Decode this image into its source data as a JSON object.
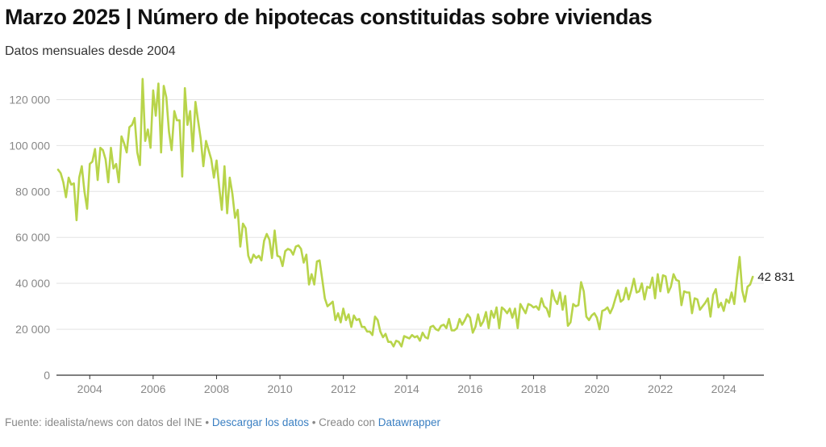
{
  "title": "Marzo 2025 | Número de hipotecas constituidas sobre viviendas",
  "subtitle": "Datos mensuales desde 2004",
  "footer": {
    "source": "Fuente: idealista/news con datos del INE",
    "sep1": " • ",
    "download_label": "Descargar los datos",
    "sep2": " • Creado con ",
    "tool_label": "Datawrapper"
  },
  "chart_data": {
    "type": "line",
    "title": "Marzo 2025 | Número de hipotecas constituidas sobre viviendas",
    "subtitle": "Datos mensuales desde 2004",
    "xlabel": "",
    "ylabel": "",
    "x_start": "2003-01",
    "frequency": "monthly",
    "xlim": [
      "2003-01",
      "2025-03"
    ],
    "ylim": [
      0,
      130000
    ],
    "y_ticks": [
      0,
      20000,
      40000,
      60000,
      80000,
      100000,
      120000
    ],
    "y_tick_labels": [
      "0",
      "20 000",
      "40 000",
      "60 000",
      "80 000",
      "100 000",
      "120 000"
    ],
    "x_ticks": [
      "2004",
      "2006",
      "2008",
      "2010",
      "2012",
      "2014",
      "2016",
      "2018",
      "2020",
      "2022",
      "2024"
    ],
    "grid": true,
    "line_color": "#b8d44a",
    "end_label": "42 831",
    "series": [
      {
        "values": [
          89500,
          88000,
          84000,
          77500,
          86000,
          83000,
          83500,
          67500,
          86000,
          91000,
          80000,
          72500,
          92000,
          93000,
          98500,
          85000,
          99000,
          98000,
          94000,
          84000,
          99000,
          90000,
          92000,
          84000,
          104000,
          101000,
          97000,
          108000,
          109000,
          112000,
          97000,
          91500,
          129000,
          102000,
          107000,
          99000,
          124000,
          113000,
          127000,
          97000,
          126000,
          121000,
          106000,
          98000,
          115000,
          111000,
          111000,
          86500,
          125000,
          109000,
          115000,
          97500,
          119000,
          111000,
          103000,
          91000,
          102000,
          98000,
          94000,
          86000,
          93500,
          82000,
          72000,
          91000,
          70500,
          86000,
          79000,
          68500,
          72000,
          56000,
          66000,
          64000,
          52000,
          49000,
          52500,
          51000,
          52000,
          50000,
          58500,
          61500,
          59000,
          51000,
          63000,
          52000,
          51500,
          47500,
          54000,
          55000,
          54500,
          52500,
          56000,
          56500,
          55000,
          49000,
          52500,
          39500,
          44000,
          39500,
          49500,
          50000,
          42000,
          33500,
          30000,
          31000,
          32000,
          24000,
          27000,
          23000,
          29000,
          24000,
          26500,
          21000,
          26000,
          24000,
          24500,
          21000,
          21000,
          19000,
          19000,
          17500,
          25500,
          24000,
          19000,
          16500,
          18000,
          14500,
          14500,
          12500,
          15000,
          14500,
          12500,
          17000,
          16500,
          16000,
          17500,
          16500,
          17000,
          15000,
          18500,
          16500,
          16000,
          21000,
          21500,
          20000,
          19500,
          21500,
          22000,
          20500,
          24500,
          19500,
          19500,
          20500,
          24500,
          22000,
          24000,
          26500,
          25000,
          18500,
          21000,
          26500,
          21500,
          23500,
          27500,
          20500,
          28000,
          25000,
          29500,
          20500,
          29500,
          28500,
          27000,
          29000,
          25000,
          29000,
          20500,
          31000,
          29000,
          27000,
          31000,
          30500,
          29500,
          30000,
          28500,
          33500,
          30000,
          29000,
          25500,
          37000,
          33000,
          31000,
          36000,
          28500,
          34500,
          21500,
          23000,
          31000,
          30000,
          30500,
          40500,
          36500,
          25500,
          24000,
          26000,
          27000,
          25000,
          20000,
          28000,
          28500,
          29500,
          27000,
          29500,
          33500,
          37000,
          32000,
          33000,
          38000,
          33000,
          37000,
          42000,
          36000,
          36500,
          40000,
          33000,
          38500,
          38000,
          42500,
          33500,
          44000,
          36500,
          43500,
          43000,
          36000,
          38500,
          44000,
          41500,
          41000,
          30500,
          36500,
          36000,
          36000,
          27000,
          33500,
          33000,
          28500,
          30000,
          31500,
          33500,
          25500,
          35000,
          37500,
          29500,
          31500,
          28000,
          33000,
          31500,
          36000,
          31000,
          42000,
          51500,
          37000,
          32000,
          38500,
          39500,
          42831
        ]
      }
    ]
  }
}
